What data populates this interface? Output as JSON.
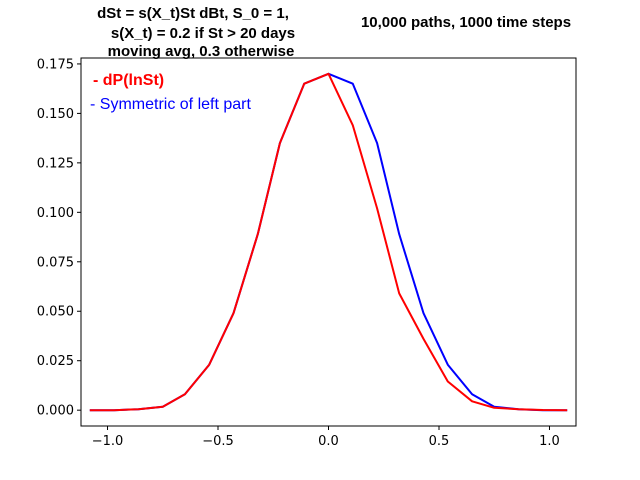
{
  "chart_data": {
    "type": "line",
    "title_lines": [
      "dSt = s(X_t)St dBt, S_0 = 1,",
      "s(X_t) = 0.2 if St > 20 days",
      "moving avg, 0.3 otherwise"
    ],
    "subtitle": "10,000 paths, 1000 time steps",
    "xlim": [
      -1.12,
      1.12
    ],
    "ylim": [
      -0.008,
      0.178
    ],
    "x_ticks": [
      -1.0,
      -0.5,
      0.0,
      0.5,
      1.0
    ],
    "x_tick_labels": [
      "−1.0",
      "−0.5",
      "0.0",
      "0.5",
      "1.0"
    ],
    "y_ticks": [
      0.0,
      0.025,
      0.05,
      0.075,
      0.1,
      0.125,
      0.15,
      0.175
    ],
    "y_tick_labels": [
      "0.000",
      "0.025",
      "0.050",
      "0.075",
      "0.100",
      "0.125",
      "0.150",
      "0.175"
    ],
    "grid": false,
    "legend_placement": "top-left",
    "series": [
      {
        "name": "- Symmetric of left part",
        "color": "#0000ff",
        "x": [
          -1.08,
          -0.97,
          -0.86,
          -0.75,
          -0.65,
          -0.54,
          -0.43,
          -0.32,
          -0.22,
          -0.11,
          0.0,
          0.11,
          0.22,
          0.32,
          0.43,
          0.54,
          0.65,
          0.75,
          0.86,
          0.97,
          1.08
        ],
        "y": [
          0.0,
          0.0,
          0.0005,
          0.0017,
          0.008,
          0.023,
          0.049,
          0.089,
          0.135,
          0.165,
          0.17,
          0.165,
          0.135,
          0.089,
          0.049,
          0.023,
          0.008,
          0.0017,
          0.0005,
          0.0,
          0.0
        ]
      },
      {
        "name": "- dP(lnSt)",
        "color": "#ff0000",
        "x": [
          -1.08,
          -0.97,
          -0.86,
          -0.75,
          -0.65,
          -0.54,
          -0.43,
          -0.32,
          -0.22,
          -0.11,
          0.0,
          0.11,
          0.22,
          0.32,
          0.43,
          0.54,
          0.65,
          0.75,
          0.86,
          0.97,
          1.08
        ],
        "y": [
          0.0,
          0.0,
          0.0005,
          0.0017,
          0.008,
          0.023,
          0.049,
          0.089,
          0.135,
          0.165,
          0.17,
          0.144,
          0.102,
          0.059,
          0.036,
          0.0145,
          0.0045,
          0.0012,
          0.0005,
          0.0001,
          0.0
        ]
      }
    ]
  }
}
